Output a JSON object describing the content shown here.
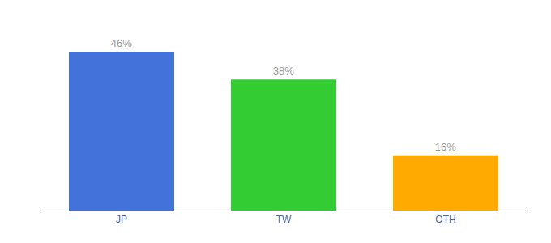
{
  "chart_data": {
    "type": "bar",
    "categories": [
      "JP",
      "TW",
      "OTH"
    ],
    "values": [
      46,
      38,
      16
    ],
    "value_labels": [
      "46%",
      "38%",
      "16%"
    ],
    "colors": [
      "#4472db",
      "#33cc33",
      "#ffaa00"
    ],
    "ylim": [
      0,
      54
    ],
    "grid": false,
    "data_labels": true,
    "tick_labels": "x"
  }
}
